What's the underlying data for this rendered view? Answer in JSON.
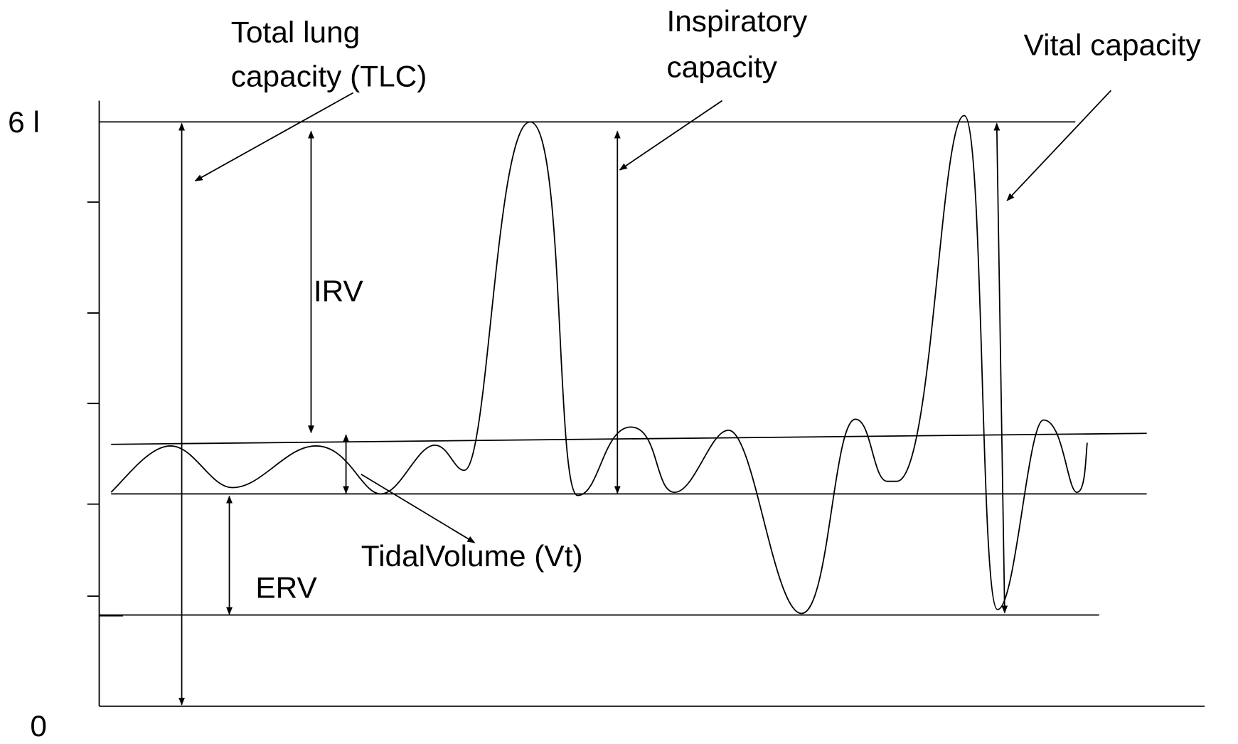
{
  "axis": {
    "top_label": "6 l",
    "bottom_label": "0"
  },
  "labels": {
    "tlc": [
      "Total lung",
      "capacity (TLC)"
    ],
    "inspiratory_capacity": [
      "Inspiratory",
      "capacity"
    ],
    "vital_capacity": "Vital capacity",
    "irv": "IRV",
    "erv": "ERV",
    "tidal_volume": "TidalVolume (Vt)"
  }
}
